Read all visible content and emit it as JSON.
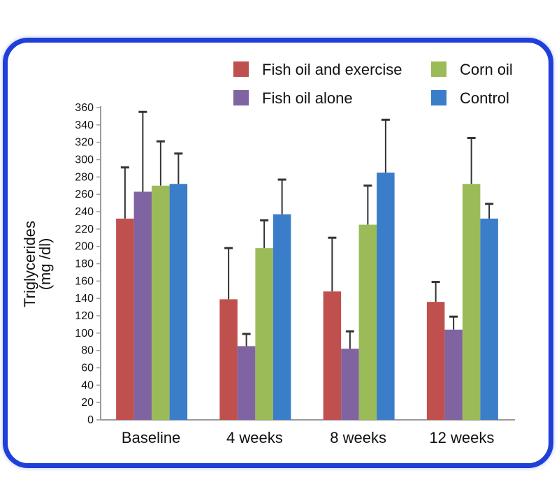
{
  "chart_data": {
    "type": "bar",
    "title": "",
    "xlabel": "",
    "ylabel": [
      "Triglycerides",
      "(mg /dl)"
    ],
    "ylim": [
      0,
      360
    ],
    "yticks": [
      0,
      20,
      40,
      60,
      80,
      100,
      120,
      140,
      160,
      180,
      200,
      220,
      240,
      260,
      280,
      300,
      320,
      340,
      360
    ],
    "categories": [
      "Baseline",
      "4 weeks",
      "8 weeks",
      "12 weeks"
    ],
    "grid": false,
    "legend_position": "top-right",
    "error_bars": "upper",
    "series": [
      {
        "name": "Fish oil and exercise",
        "color": "#c0504d",
        "values": [
          232,
          139,
          148,
          136
        ],
        "errors": [
          59,
          59,
          62,
          23
        ]
      },
      {
        "name": "Fish oil alone",
        "color": "#8064a2",
        "values": [
          263,
          85,
          82,
          104
        ],
        "errors": [
          92,
          14,
          20,
          15
        ]
      },
      {
        "name": "Corn oil",
        "color": "#9bbb59",
        "values": [
          270,
          198,
          225,
          272
        ],
        "errors": [
          51,
          32,
          45,
          53
        ]
      },
      {
        "name": "Control",
        "color": "#3a7dc8",
        "values": [
          272,
          237,
          285,
          232
        ],
        "errors": [
          35,
          40,
          61,
          17
        ]
      }
    ]
  },
  "frame_color": "#1e3fd8"
}
